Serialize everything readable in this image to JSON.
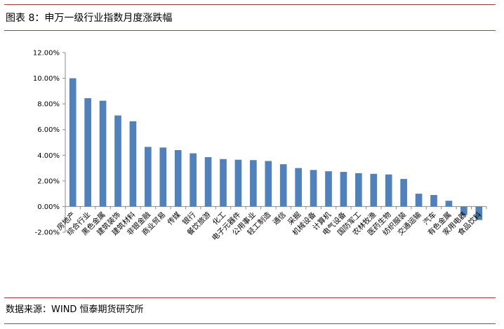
{
  "figure": {
    "title": "图表 8：申万一级行业指数月度涨跌幅",
    "source": "数据来源：WIND 恒泰期货研究所"
  },
  "chart_data": {
    "type": "bar",
    "title": "",
    "xlabel": "",
    "ylabel": "",
    "ylim": [
      -2,
      12
    ],
    "yticks": [
      -2,
      0,
      2,
      4,
      6,
      8,
      10,
      12
    ],
    "ytick_labels": [
      "-2.00%",
      "0.00%",
      "2.00%",
      "4.00%",
      "6.00%",
      "8.00%",
      "10.00%",
      "12.00%"
    ],
    "grid": false,
    "legend": "none",
    "bar_color": "#4f81bd",
    "categories": [
      "房地产",
      "综合行业",
      "黑色金属",
      "建筑装饰",
      "建筑材料",
      "非银金融",
      "商业贸易",
      "传媒",
      "银行",
      "餐饮旅游",
      "化工",
      "电子元器件",
      "公用事业",
      "轻工制造",
      "通信",
      "采掘",
      "机械设备",
      "计算机",
      "电气设备",
      "国防军工",
      "农林牧渔",
      "医药生物",
      "纺织服装",
      "交通运输",
      "汽车",
      "有色金属",
      "家用电器",
      "食品饮料"
    ],
    "values": [
      10.0,
      8.45,
      8.25,
      7.1,
      6.65,
      4.65,
      4.6,
      4.4,
      4.15,
      3.85,
      3.7,
      3.65,
      3.62,
      3.55,
      3.3,
      3.0,
      2.85,
      2.75,
      2.7,
      2.6,
      2.55,
      2.5,
      2.15,
      1.0,
      0.9,
      0.45,
      -0.65,
      -1.05
    ]
  }
}
